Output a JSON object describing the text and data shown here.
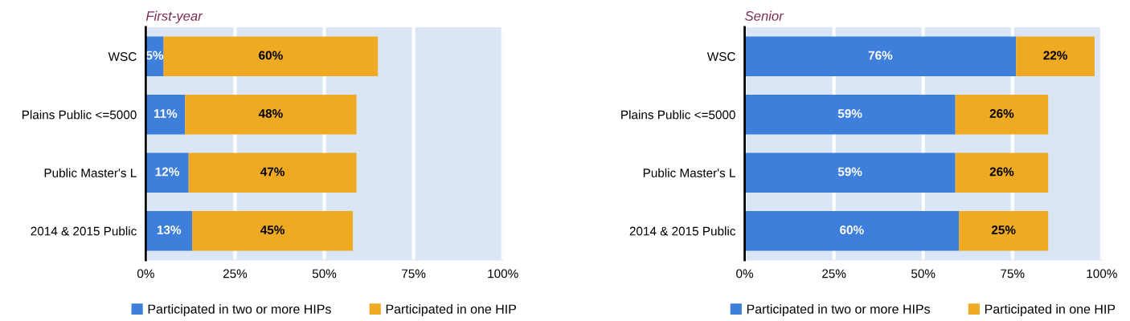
{
  "chart_data": [
    {
      "type": "bar",
      "title": "First-year",
      "orientation": "horizontal",
      "stacked": true,
      "categories": [
        "WSC",
        "Plains Public <=5000",
        "Public Master's L",
        "2014 & 2015 Public"
      ],
      "series": [
        {
          "name": "Participated in two or more HIPs",
          "color": "#3f7fdc",
          "values": [
            5,
            11,
            12,
            13
          ],
          "value_labels": [
            "5%",
            "11%",
            "12%",
            "13%"
          ]
        },
        {
          "name": "Participated in one HIP",
          "color": "#eeaa22",
          "values": [
            60,
            48,
            47,
            45
          ],
          "value_labels": [
            "60%",
            "48%",
            "47%",
            "45%"
          ]
        }
      ],
      "xlim": [
        0,
        100
      ],
      "xticks": [
        {
          "value": 0,
          "label": "0%"
        },
        {
          "value": 25,
          "label": "25%"
        },
        {
          "value": 50,
          "label": "50%"
        },
        {
          "value": 75,
          "label": "75%"
        },
        {
          "value": 100,
          "label": "100%"
        }
      ],
      "grid": "x",
      "legend": "bottom"
    },
    {
      "type": "bar",
      "title": "Senior",
      "orientation": "horizontal",
      "stacked": true,
      "categories": [
        "WSC",
        "Plains Public <=5000",
        "Public Master's L",
        "2014 & 2015 Public"
      ],
      "series": [
        {
          "name": "Participated in two or more HIPs",
          "color": "#3f7fdc",
          "values": [
            76,
            59,
            59,
            60
          ],
          "value_labels": [
            "76%",
            "59%",
            "59%",
            "60%"
          ]
        },
        {
          "name": "Participated in one HIP",
          "color": "#eeaa22",
          "values": [
            22,
            26,
            26,
            25
          ],
          "value_labels": [
            "22%",
            "26%",
            "26%",
            "25%"
          ]
        }
      ],
      "xlim": [
        0,
        100
      ],
      "xticks": [
        {
          "value": 0,
          "label": "0%"
        },
        {
          "value": 25,
          "label": "25%"
        },
        {
          "value": 50,
          "label": "50%"
        },
        {
          "value": 75,
          "label": "75%"
        },
        {
          "value": 100,
          "label": "100%"
        }
      ],
      "grid": "x",
      "legend": "bottom"
    }
  ]
}
